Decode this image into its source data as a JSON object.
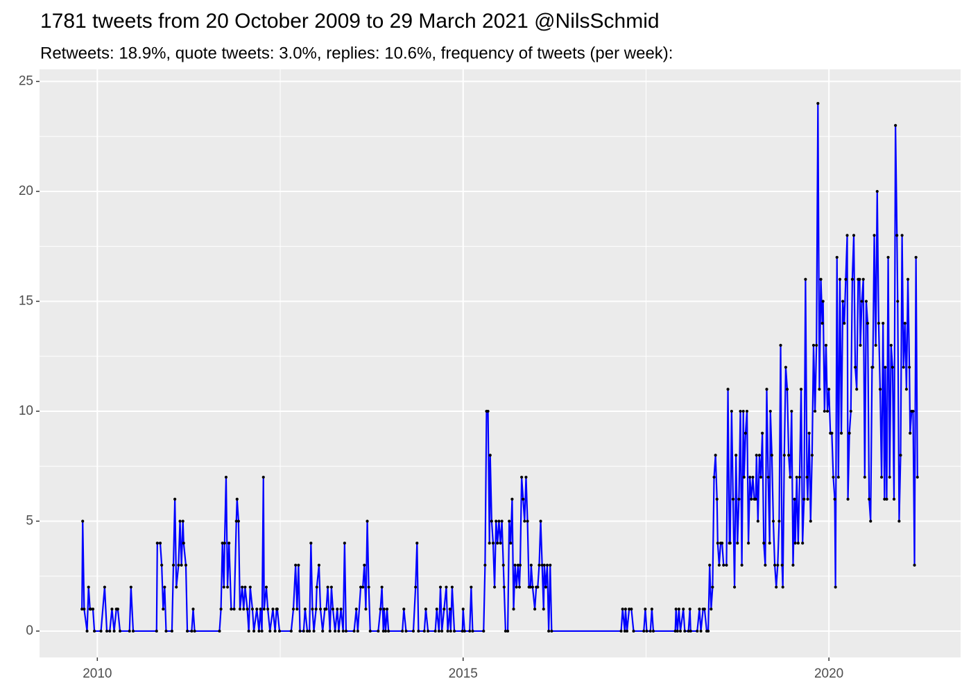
{
  "chart_data": {
    "type": "line",
    "title": "1781 tweets from 20 October 2009 to 29 March 2021 @NilsSchmid",
    "subtitle": "Retweets: 18.9%, quote tweets: 3.0%, replies: 10.6%, frequency of tweets (per week):",
    "color": "#0000FF",
    "point_color": "#000000",
    "panel_color": "#EBEBEB",
    "grid": true,
    "xlim": [
      2009.21,
      2021.8
    ],
    "ylim": [
      -1.2,
      25.55
    ],
    "xticks": [
      2010,
      2015,
      2020
    ],
    "yticks": [
      0,
      5,
      10,
      15,
      20,
      25
    ],
    "x_minor_grid": [
      2012.5,
      2017.5
    ],
    "y_minor_grid": [
      2.5,
      7.5,
      12.5,
      17.5,
      22.5
    ],
    "x": [
      2009.79,
      2009.8,
      2009.82,
      2009.86,
      2009.88,
      2009.9,
      2009.91,
      2009.94,
      2009.96,
      2010.05,
      2010.1,
      2010.13,
      2010.17,
      2010.2,
      2010.23,
      2010.26,
      2010.28,
      2010.31,
      2010.44,
      2010.46,
      2010.49,
      2010.81,
      2010.82,
      2010.86,
      2010.88,
      2010.9,
      2010.92,
      2010.94,
      2011.02,
      2011.04,
      2011.06,
      2011.08,
      2011.11,
      2011.13,
      2011.15,
      2011.17,
      2011.18,
      2011.21,
      2011.23,
      2011.29,
      2011.31,
      2011.33,
      2011.67,
      2011.69,
      2011.71,
      2011.73,
      2011.74,
      2011.76,
      2011.78,
      2011.8,
      2011.83,
      2011.87,
      2011.9,
      2011.91,
      2011.93,
      2011.95,
      2011.98,
      2012.0,
      2012.02,
      2012.05,
      2012.07,
      2012.09,
      2012.12,
      2012.14,
      2012.18,
      2012.21,
      2012.23,
      2012.25,
      2012.27,
      2012.28,
      2012.31,
      2012.33,
      2012.36,
      2012.4,
      2012.43,
      2012.45,
      2012.46,
      2012.49,
      2012.65,
      2012.68,
      2012.71,
      2012.73,
      2012.75,
      2012.77,
      2012.82,
      2012.84,
      2012.87,
      2012.9,
      2012.92,
      2012.94,
      2012.96,
      2012.99,
      2013.0,
      2013.03,
      2013.05,
      2013.08,
      2013.11,
      2013.13,
      2013.15,
      2013.18,
      2013.2,
      2013.22,
      2013.25,
      2013.28,
      2013.3,
      2013.33,
      2013.36,
      2013.38,
      2013.4,
      2013.51,
      2013.54,
      2013.56,
      2013.6,
      2013.63,
      2013.65,
      2013.67,
      2013.69,
      2013.71,
      2013.73,
      2013.84,
      2013.87,
      2013.89,
      2013.91,
      2013.92,
      2013.94,
      2013.96,
      2013.98,
      2014.17,
      2014.19,
      2014.22,
      2014.32,
      2014.35,
      2014.37,
      2014.39,
      2014.47,
      2014.49,
      2014.52,
      2014.62,
      2014.64,
      2014.67,
      2014.69,
      2014.71,
      2014.74,
      2014.77,
      2014.79,
      2014.82,
      2014.83,
      2014.85,
      2014.88,
      2014.99,
      2015.0,
      2015.02,
      2015.09,
      2015.11,
      2015.13,
      2015.28,
      2015.3,
      2015.32,
      2015.34,
      2015.36,
      2015.37,
      2015.39,
      2015.41,
      2015.43,
      2015.45,
      2015.47,
      2015.49,
      2015.51,
      2015.53,
      2015.55,
      2015.56,
      2015.58,
      2015.61,
      2015.63,
      2015.65,
      2015.67,
      2015.69,
      2015.71,
      2015.73,
      2015.75,
      2015.77,
      2015.78,
      2015.8,
      2015.82,
      2015.84,
      2015.86,
      2015.88,
      2015.9,
      2015.92,
      2015.93,
      2015.95,
      2015.98,
      2016.0,
      2016.02,
      2016.04,
      2016.06,
      2016.08,
      2016.1,
      2016.11,
      2016.13,
      2016.15,
      2016.17,
      2016.19,
      2016.21,
      2017.16,
      2017.18,
      2017.21,
      2017.22,
      2017.24,
      2017.27,
      2017.3,
      2017.33,
      2017.47,
      2017.49,
      2017.51,
      2017.56,
      2017.58,
      2017.6,
      2017.9,
      2017.91,
      2017.93,
      2017.95,
      2017.97,
      2018.01,
      2018.03,
      2018.08,
      2018.1,
      2018.11,
      2018.2,
      2018.23,
      2018.25,
      2018.28,
      2018.3,
      2018.33,
      2018.35,
      2018.37,
      2018.39,
      2018.41,
      2018.43,
      2018.45,
      2018.47,
      2018.48,
      2018.5,
      2018.52,
      2018.54,
      2018.56,
      2018.6,
      2018.62,
      2018.64,
      2018.65,
      2018.67,
      2018.69,
      2018.71,
      2018.73,
      2018.75,
      2018.77,
      2018.79,
      2018.81,
      2018.83,
      2018.84,
      2018.86,
      2018.88,
      2018.9,
      2018.92,
      2018.94,
      2018.96,
      2018.98,
      2019.0,
      2019.01,
      2019.03,
      2019.05,
      2019.07,
      2019.09,
      2019.11,
      2019.13,
      2019.15,
      2019.17,
      2019.19,
      2019.2,
      2019.22,
      2019.24,
      2019.26,
      2019.28,
      2019.3,
      2019.32,
      2019.34,
      2019.36,
      2019.37,
      2019.39,
      2019.41,
      2019.43,
      2019.45,
      2019.47,
      2019.49,
      2019.51,
      2019.53,
      2019.54,
      2019.56,
      2019.58,
      2019.6,
      2019.62,
      2019.64,
      2019.66,
      2019.68,
      2019.7,
      2019.71,
      2019.73,
      2019.75,
      2019.77,
      2019.79,
      2019.81,
      2019.83,
      2019.85,
      2019.87,
      2019.89,
      2019.91,
      2019.92,
      2019.94,
      2019.96,
      2019.98,
      2020.0,
      2020.02,
      2020.04,
      2020.06,
      2020.08,
      2020.09,
      2020.11,
      2020.13,
      2020.15,
      2020.17,
      2020.19,
      2020.21,
      2020.23,
      2020.25,
      2020.26,
      2020.28,
      2020.3,
      2020.32,
      2020.34,
      2020.36,
      2020.38,
      2020.4,
      2020.42,
      2020.43,
      2020.45,
      2020.47,
      2020.49,
      2020.51,
      2020.53,
      2020.55,
      2020.57,
      2020.59,
      2020.6,
      2020.62,
      2020.64,
      2020.66,
      2020.68,
      2020.7,
      2020.72,
      2020.74,
      2020.76,
      2020.77,
      2020.79,
      2020.81,
      2020.83,
      2020.85,
      2020.87,
      2020.89,
      2020.91,
      2020.93,
      2020.94,
      2020.96,
      2020.98,
      2021.0,
      2021.02,
      2021.04,
      2021.06,
      2021.08,
      2021.1,
      2021.11,
      2021.13,
      2021.15,
      2021.17,
      2021.19,
      2021.21
    ],
    "values": [
      1,
      5,
      1,
      0,
      2,
      1,
      1,
      1,
      0,
      0,
      2,
      0,
      0,
      1,
      0,
      1,
      1,
      0,
      0,
      2,
      0,
      0,
      4,
      4,
      3,
      1,
      2,
      0,
      0,
      3,
      6,
      2,
      3,
      5,
      3,
      5,
      4,
      3,
      0,
      0,
      1,
      0,
      0,
      1,
      4,
      2,
      4,
      7,
      2,
      4,
      1,
      1,
      5,
      6,
      5,
      1,
      2,
      1,
      2,
      1,
      0,
      2,
      1,
      0,
      1,
      0,
      1,
      0,
      7,
      1,
      2,
      1,
      0,
      1,
      0,
      1,
      1,
      0,
      0,
      1,
      3,
      1,
      3,
      0,
      0,
      1,
      0,
      0,
      4,
      1,
      0,
      1,
      2,
      3,
      1,
      0,
      1,
      1,
      2,
      0,
      2,
      1,
      0,
      1,
      0,
      1,
      0,
      4,
      0,
      0,
      1,
      0,
      2,
      2,
      3,
      1,
      5,
      2,
      0,
      0,
      1,
      2,
      0,
      1,
      0,
      1,
      0,
      0,
      1,
      0,
      0,
      2,
      4,
      0,
      0,
      1,
      0,
      0,
      1,
      0,
      2,
      0,
      1,
      2,
      0,
      1,
      0,
      2,
      0,
      0,
      1,
      0,
      0,
      2,
      0,
      0,
      3,
      10,
      10,
      4,
      8,
      5,
      4,
      2,
      5,
      4,
      5,
      4,
      5,
      3,
      2,
      0,
      0,
      5,
      4,
      6,
      1,
      3,
      2,
      3,
      2,
      3,
      7,
      6,
      5,
      7,
      5,
      2,
      2,
      3,
      2,
      1,
      2,
      2,
      3,
      5,
      3,
      1,
      3,
      2,
      3,
      0,
      3,
      0,
      0,
      1,
      0,
      1,
      0,
      1,
      1,
      0,
      0,
      1,
      0,
      0,
      1,
      0,
      0,
      1,
      0,
      1,
      0,
      1,
      0,
      0,
      1,
      0,
      0,
      1,
      0,
      1,
      1,
      0,
      0,
      3,
      1,
      2,
      7,
      8,
      6,
      4,
      3,
      4,
      4,
      3,
      3,
      11,
      4,
      4,
      10,
      6,
      2,
      8,
      4,
      6,
      10,
      3,
      10,
      7,
      9,
      10,
      4,
      7,
      6,
      7,
      6,
      6,
      8,
      5,
      8,
      7,
      9,
      4,
      3,
      11,
      7,
      4,
      10,
      8,
      5,
      3,
      2,
      3,
      5,
      13,
      3,
      2,
      8,
      12,
      11,
      8,
      7,
      10,
      3,
      6,
      4,
      7,
      4,
      7,
      11,
      4,
      6,
      16,
      7,
      6,
      9,
      5,
      8,
      13,
      10,
      13,
      24,
      11,
      16,
      14,
      15,
      10,
      13,
      10,
      11,
      9,
      9,
      7,
      6,
      2,
      17,
      7,
      16,
      9,
      15,
      14,
      16,
      18,
      6,
      9,
      10,
      16,
      18,
      12,
      11,
      16,
      16,
      13,
      15,
      16,
      7,
      15,
      14,
      6,
      5,
      12,
      12,
      18,
      13,
      20,
      14,
      11,
      7,
      14,
      6,
      12,
      6,
      17,
      7,
      13,
      12,
      6,
      23,
      18,
      15,
      5,
      8,
      18,
      12,
      14,
      11,
      16,
      12,
      9,
      10,
      10,
      3,
      17,
      7
    ]
  }
}
